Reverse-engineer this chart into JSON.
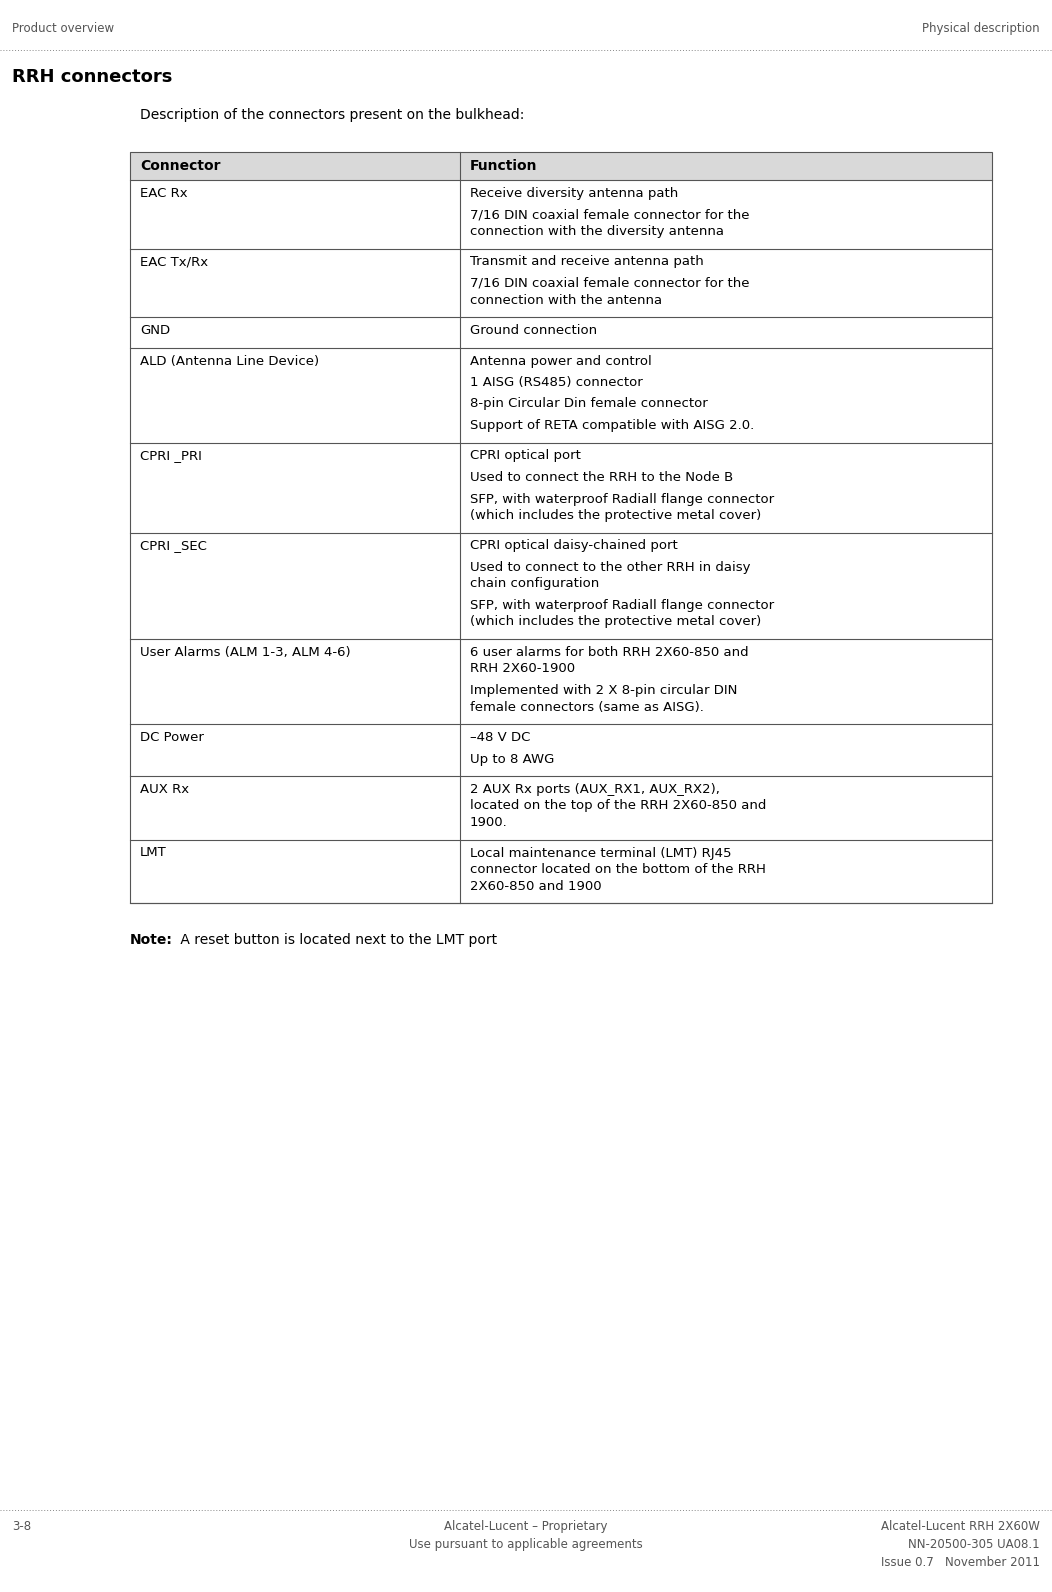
{
  "page_width": 10.52,
  "page_height": 15.92,
  "dpi": 100,
  "bg_color": "#ffffff",
  "header_left": "Product overview",
  "header_right": "Physical description",
  "section_title": "RRH connectors",
  "intro_text": "Description of the connectors present on the bulkhead:",
  "table_header_bg": "#d9d9d9",
  "table_border_color": "#555555",
  "col1_header": "Connector",
  "col2_header": "Function",
  "rows": [
    {
      "connector": "EAC Rx",
      "function_lines": [
        "Receive diversity antenna path",
        "7/16 DIN coaxial female connector for the\nconnection with the diversity antenna"
      ]
    },
    {
      "connector": "EAC Tx/Rx",
      "function_lines": [
        "Transmit and receive antenna path",
        "7/16 DIN coaxial female connector for the\nconnection with the antenna"
      ]
    },
    {
      "connector": "GND",
      "function_lines": [
        "Ground connection"
      ]
    },
    {
      "connector": "ALD (Antenna Line Device)",
      "function_lines": [
        "Antenna power and control",
        "1 AISG (RS485) connector",
        "8-pin Circular Din female connector",
        "Support of RETA compatible with AISG 2.0."
      ]
    },
    {
      "connector": "CPRI _PRI",
      "function_lines": [
        "CPRI optical port",
        "Used to connect the RRH to the Node B",
        "SFP, with waterproof Radiall flange connector\n(which includes the protective metal cover)"
      ]
    },
    {
      "connector": "CPRI _SEC",
      "function_lines": [
        "CPRI optical daisy-chained port",
        "Used to connect to the other RRH in daisy\nchain configuration",
        "SFP, with waterproof Radiall flange connector\n(which includes the protective metal cover)"
      ]
    },
    {
      "connector": "User Alarms (ALM 1-3, ALM 4-6)",
      "function_lines": [
        "6 user alarms for both RRH 2X60-850 and\nRRH 2X60-1900",
        "Implemented with 2 X 8-pin circular DIN\nfemale connectors (same as AISG)."
      ]
    },
    {
      "connector": "DC Power",
      "function_lines": [
        "–48 V DC",
        "Up to 8 AWG"
      ]
    },
    {
      "connector": "AUX Rx",
      "function_lines": [
        "2 AUX Rx ports (AUX_RX1, AUX_RX2),\nlocated on the top of the RRH 2X60-850 and\n1900."
      ]
    },
    {
      "connector": "LMT",
      "function_lines": [
        "Local maintenance terminal (LMT) RJ45\nconnector located on the bottom of the RRH\n2X60-850 and 1900"
      ]
    }
  ],
  "note_bold": "Note:",
  "note_text": " A reset button is located next to the LMT port",
  "footer_left": "3-8",
  "footer_center_line1": "Alcatel-Lucent – Proprietary",
  "footer_center_line2": "Use pursuant to applicable agreements",
  "footer_right_line1": "Alcatel-Lucent RRH 2X60W",
  "footer_right_line2": "NN-20500-305 UA08.1",
  "footer_right_line3": "Issue 0.7   November 2011"
}
